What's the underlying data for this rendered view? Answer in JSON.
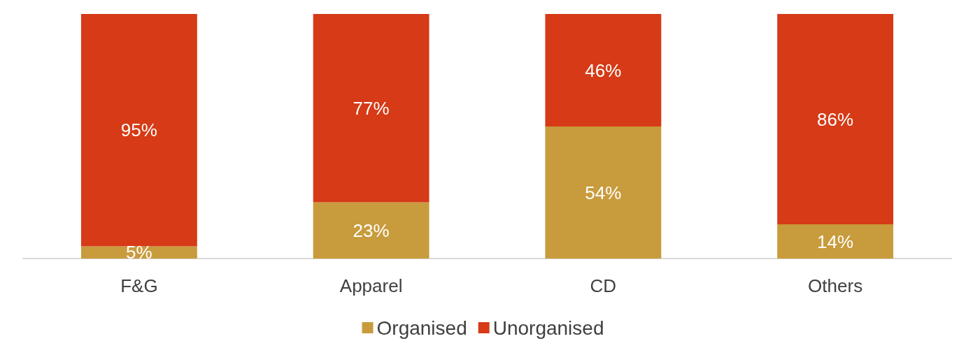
{
  "chart_data": {
    "type": "bar",
    "stacked": true,
    "categories": [
      "F&G",
      "Apparel",
      "CD",
      "Others"
    ],
    "series": [
      {
        "name": "Organised",
        "color": "#c89b3c",
        "values": [
          5,
          23,
          54,
          14
        ],
        "value_labels": [
          "5%",
          "23%",
          "54%",
          "14%"
        ]
      },
      {
        "name": "Unorganised",
        "color": "#d63a16",
        "values": [
          95,
          77,
          46,
          86
        ],
        "value_labels": [
          "95%",
          "77%",
          "46%",
          "86%"
        ]
      }
    ],
    "legend": "bottom",
    "grid": false
  }
}
